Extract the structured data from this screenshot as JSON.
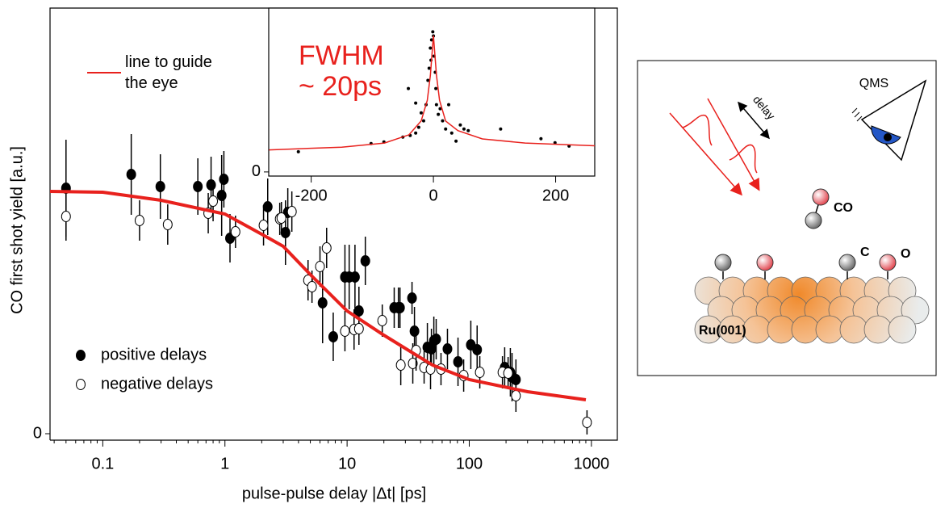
{
  "chart_data": [
    {
      "type": "scatter",
      "x_label": "pulse-pulse delay |Δt| [ps]",
      "y_label": "CO first shot yield [a.u.]",
      "log_x": true,
      "xlim": [
        0.037,
        1630
      ],
      "ylim": [
        -0.016,
        1.054
      ],
      "xticks": [
        0.1,
        1,
        10,
        100,
        1000
      ],
      "xminorticks": [
        0.04,
        0.05,
        0.06,
        0.07,
        0.08,
        0.09,
        0.2,
        0.3,
        0.4,
        0.5,
        0.6,
        0.7,
        0.8,
        0.9,
        2,
        3,
        4,
        5,
        6,
        7,
        8,
        9,
        20,
        30,
        40,
        50,
        60,
        70,
        80,
        90,
        200,
        300,
        400,
        500,
        600,
        700,
        800,
        900
      ],
      "yticks": [
        0
      ],
      "legend": "lower left",
      "series": [
        {
          "name": "positive delays",
          "color": "#000000",
          "marker": "filled",
          "x": [
            0.05,
            0.171,
            0.296,
            0.6,
            0.77,
            0.94,
            0.98,
            1.1,
            2.24,
            3.13,
            3.27,
            6.3,
            7.7,
            9.6,
            10.4,
            11.6,
            12.5,
            14.1,
            24.3,
            26.3,
            27.1,
            34.0,
            35.6,
            45.4,
            49.0,
            51.3,
            53.6,
            66.3,
            80.9,
            103,
            116,
            195,
            217,
            224,
            241
          ],
          "values": [
            0.608,
            0.642,
            0.612,
            0.612,
            0.616,
            0.59,
            0.63,
            0.484,
            0.562,
            0.498,
            0.548,
            0.324,
            0.24,
            0.388,
            0.388,
            0.388,
            0.304,
            0.428,
            0.312,
            0.312,
            0.312,
            0.336,
            0.254,
            0.214,
            0.21,
            0.23,
            0.234,
            0.21,
            0.178,
            0.22,
            0.208,
            0.164,
            0.152,
            0.14,
            0.134
          ],
          "errors": [
            0.12,
            0.1,
            0.08,
            0.07,
            0.07,
            0.1,
            0.07,
            0.06,
            0.07,
            0.08,
            0.06,
            0.1,
            0.06,
            0.08,
            0.08,
            0.08,
            0.06,
            0.06,
            0.05,
            0.05,
            0.05,
            0.04,
            0.06,
            0.06,
            0.05,
            0.06,
            0.05,
            0.05,
            0.06,
            0.06,
            0.06,
            0.05,
            0.06,
            0.06,
            0.05
          ]
        },
        {
          "name": "negative delays",
          "color": "#000000",
          "marker": "open",
          "x": [
            0.05,
            0.2,
            0.34,
            0.73,
            0.8,
            1.22,
            2.07,
            2.81,
            2.9,
            3.53,
            4.79,
            5.16,
            6.0,
            6.8,
            9.6,
            11.4,
            12.5,
            19.4,
            27.5,
            34.5,
            36.7,
            42.7,
            48.2,
            58.7,
            90,
            122,
            187,
            208,
            241,
            920
          ],
          "values": [
            0.538,
            0.528,
            0.518,
            0.546,
            0.576,
            0.5,
            0.516,
            0.532,
            0.534,
            0.55,
            0.38,
            0.364,
            0.414,
            0.46,
            0.254,
            0.258,
            0.26,
            0.28,
            0.17,
            0.174,
            0.206,
            0.164,
            0.16,
            0.16,
            0.144,
            0.152,
            0.152,
            0.15,
            0.094,
            0.028
          ],
          "errors": [
            0.06,
            0.05,
            0.05,
            0.05,
            0.05,
            0.04,
            0.05,
            0.04,
            0.04,
            0.05,
            0.05,
            0.04,
            0.05,
            0.05,
            0.05,
            0.05,
            0.04,
            0.04,
            0.05,
            0.05,
            0.05,
            0.04,
            0.05,
            0.04,
            0.04,
            0.04,
            0.04,
            0.04,
            0.04,
            0.03
          ]
        },
        {
          "name": "line to guide the eye",
          "color": "#e8211d",
          "marker": "line",
          "x": [
            0.037,
            0.1,
            0.3,
            1,
            2,
            3,
            5,
            10,
            20,
            50,
            100,
            300,
            900
          ],
          "values": [
            0.6,
            0.598,
            0.578,
            0.544,
            0.494,
            0.464,
            0.394,
            0.304,
            0.244,
            0.17,
            0.134,
            0.104,
            0.084
          ]
        }
      ]
    },
    {
      "type": "scatter",
      "annotation": "FWHM ~ 20ps",
      "xlim": [
        -269.5,
        264
      ],
      "ylim": [
        -0.03,
        1.19
      ],
      "xticks": [
        -200,
        0,
        200
      ],
      "yticks": [
        0
      ],
      "series": [
        {
          "color": "#000000",
          "marker": "dot",
          "x": [
            -221,
            -102,
            -81,
            -50,
            -41,
            -38,
            -29,
            -29,
            -24,
            -20,
            -16,
            -12,
            -9,
            -7,
            -5,
            -4,
            -3,
            -1,
            0,
            1,
            3,
            4,
            5,
            8,
            11,
            15,
            20,
            25,
            30,
            37,
            44,
            50,
            57,
            110,
            176,
            199,
            222
          ],
          "values": [
            0.147,
            0.206,
            0.218,
            0.253,
            0.606,
            0.265,
            0.282,
            0.5,
            0.324,
            0.429,
            0.371,
            0.488,
            0.665,
            0.753,
            0.9,
            0.812,
            0.959,
            1.018,
            0.988,
            0.841,
            0.724,
            0.606,
            0.488,
            0.418,
            0.459,
            0.371,
            0.312,
            0.488,
            0.282,
            0.224,
            0.341,
            0.312,
            0.3,
            0.312,
            0.241,
            0.212,
            0.188
          ]
        },
        {
          "color": "#e8211d",
          "marker": "line",
          "x": [
            -269,
            -150,
            -80,
            -40,
            -20,
            -10,
            -5,
            0,
            5,
            10,
            20,
            40,
            80,
            150,
            264
          ],
          "values": [
            0.16,
            0.18,
            0.21,
            0.27,
            0.37,
            0.52,
            0.7,
            0.99,
            0.7,
            0.52,
            0.37,
            0.3,
            0.24,
            0.21,
            0.19
          ]
        }
      ]
    }
  ],
  "diagram": {
    "delay_label": "delay",
    "detector_label": "QMS",
    "molecule_label": "CO",
    "carbon_label": "C",
    "oxygen_label": "O",
    "surface_label": "Ru(001)"
  }
}
